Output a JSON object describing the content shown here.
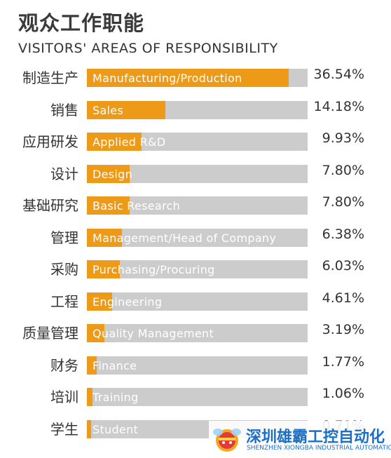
{
  "title": "观众工作职能",
  "subtitle": "VISITORS' AREAS OF RESPONSIBILITY",
  "colors": {
    "bar_fill": "#ec9a17",
    "bar_track": "#cccccc",
    "text": "#333333",
    "watermark": "#1d6fc4"
  },
  "chart_data": {
    "type": "bar",
    "orientation": "horizontal",
    "title": "观众工作职能",
    "subtitle": "VISITORS' AREAS OF RESPONSIBILITY",
    "xlim": [
      0,
      40
    ],
    "categories": [
      {
        "zh": "制造生产",
        "en": "Manufacturing/Production",
        "value": 36.54,
        "label": "36.54%"
      },
      {
        "zh": "销售",
        "en": "Sales",
        "value": 14.18,
        "label": "14.18%"
      },
      {
        "zh": "应用研发",
        "en": "Applied R&D",
        "value": 9.93,
        "label": "9.93%"
      },
      {
        "zh": "设计",
        "en": "Design",
        "value": 7.8,
        "label": "7.80%"
      },
      {
        "zh": "基础研究",
        "en": "Basic Research",
        "value": 7.8,
        "label": "7.80%"
      },
      {
        "zh": "管理",
        "en": "Management/Head of Company",
        "value": 6.38,
        "label": "6.38%"
      },
      {
        "zh": "采购",
        "en": "Purchasing/Procuring",
        "value": 6.03,
        "label": "6.03%"
      },
      {
        "zh": "工程",
        "en": "Engineering",
        "value": 4.61,
        "label": "4.61%"
      },
      {
        "zh": "质量管理",
        "en": "Quality Management",
        "value": 3.19,
        "label": "3.19%"
      },
      {
        "zh": "财务",
        "en": "Finance",
        "value": 1.77,
        "label": "1.77%"
      },
      {
        "zh": "培训",
        "en": "Training",
        "value": 1.06,
        "label": "1.06%"
      },
      {
        "zh": "学生",
        "en": "Student",
        "value": 0.71,
        "label": "0.71%"
      }
    ]
  },
  "watermark": {
    "icon": "bee-mascot-icon",
    "name_cn": "深圳雄霸工控自动化",
    "name_en": "SHENZHEN XIONGBA INDUSTRIAL AUTOMATION"
  }
}
